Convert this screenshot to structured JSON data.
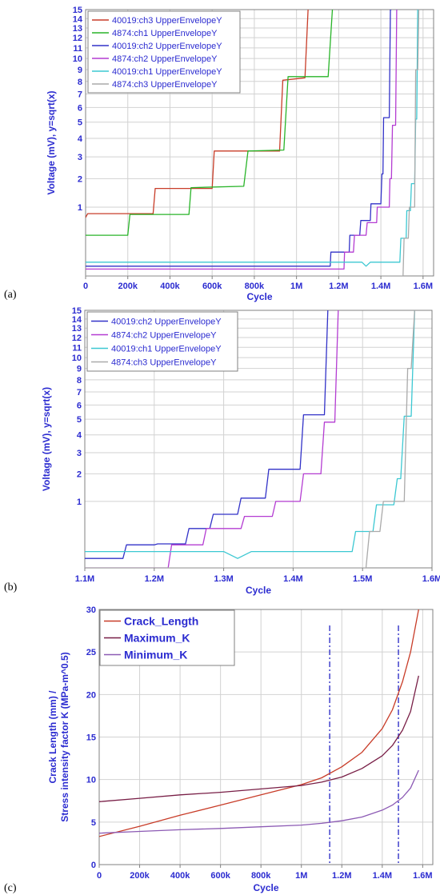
{
  "chart_data": [
    {
      "panel_label": "(a)",
      "type": "line",
      "xlabel": "Cycle",
      "ylabel": "Voltage (mV), y=sqrt(x)",
      "y_scale": "sqrt",
      "xlim": [
        0,
        1650000
      ],
      "ylim": [
        0,
        15
      ],
      "grid": true,
      "legend_position": "top-left",
      "x_ticks": [
        0,
        200000,
        400000,
        600000,
        800000,
        1000000,
        1200000,
        1400000,
        1600000
      ],
      "x_tick_labels": [
        "0",
        "200k",
        "400k",
        "600k",
        "800k",
        "1M",
        "1.2M",
        "1.4M",
        "1.6M"
      ],
      "y_ticks": [
        1,
        2,
        3,
        4,
        5,
        6,
        7,
        8,
        9,
        10,
        11,
        12,
        13,
        14,
        15
      ],
      "y_tick_labels": [
        "1",
        "2",
        "3",
        "4",
        "5",
        "6",
        "7",
        "8",
        "9",
        "10",
        "11",
        "12",
        "13",
        "14",
        "15"
      ],
      "series": [
        {
          "name": "40019:ch3 UpperEnvelopeY",
          "color": "#c83c28",
          "x": [
            0,
            10000,
            320000,
            330000,
            600000,
            610000,
            920000,
            935000,
            1040000,
            1055000
          ],
          "y": [
            0.72,
            0.82,
            0.82,
            1.62,
            1.62,
            3.3,
            3.3,
            8.1,
            8.3,
            15
          ]
        },
        {
          "name": "4874:ch1 UpperEnvelopeY",
          "color": "#28b428",
          "x": [
            0,
            200000,
            210000,
            490000,
            500000,
            750000,
            770000,
            940000,
            960000,
            1150000,
            1170000
          ],
          "y": [
            0.35,
            0.35,
            0.8,
            0.8,
            1.65,
            1.7,
            3.3,
            3.35,
            8.4,
            8.4,
            15
          ]
        },
        {
          "name": "40019:ch2 UpperEnvelopeY",
          "color": "#3232c8",
          "x": [
            0,
            1160000,
            1163000,
            1210000,
            1250000,
            1253000,
            1300000,
            1305000,
            1350000,
            1353000,
            1400000,
            1405000,
            1410000,
            1413000,
            1440000,
            1445000,
            1450000
          ],
          "y": [
            0.02,
            0.02,
            0.12,
            0.12,
            0.12,
            0.35,
            0.35,
            0.65,
            0.65,
            1.1,
            1.1,
            2.2,
            2.2,
            5.3,
            5.3,
            15,
            15
          ]
        },
        {
          "name": "4874:ch2 UpperEnvelopeY",
          "color": "#b43cd2",
          "x": [
            0,
            1225000,
            1228000,
            1270000,
            1275000,
            1330000,
            1335000,
            1380000,
            1383000,
            1440000,
            1443000,
            1450000,
            1455000,
            1470000,
            1475000
          ],
          "y": [
            0.01,
            0.01,
            0.12,
            0.12,
            0.35,
            0.35,
            0.6,
            0.6,
            1.0,
            1.0,
            2.0,
            2.0,
            4.8,
            4.8,
            15
          ]
        },
        {
          "name": "40019:ch1 UpperEnvelopeY",
          "color": "#3cc8d2",
          "x": [
            0,
            1310000,
            1330000,
            1350000,
            1490000,
            1495000,
            1520000,
            1523000,
            1540000,
            1545000,
            1560000,
            1565000,
            1570000,
            1575000
          ],
          "y": [
            0.04,
            0.04,
            0.02,
            0.04,
            0.04,
            0.3,
            0.3,
            0.9,
            0.9,
            1.8,
            1.8,
            5.2,
            5.2,
            15
          ]
        },
        {
          "name": "4874:ch3 UpperEnvelopeY",
          "color": "#aaaaaa",
          "x": [
            0,
            1505000,
            1510000,
            1530000,
            1535000,
            1560000,
            1565000,
            1575000,
            1580000
          ],
          "y": [
            0.0,
            0.0,
            0.3,
            0.3,
            1.0,
            1.0,
            9.0,
            9.0,
            15
          ]
        }
      ]
    },
    {
      "panel_label": "(b)",
      "type": "line",
      "xlabel": "Cycle",
      "ylabel": "Voltage (mV), y=sqrt(x)",
      "y_scale": "sqrt",
      "xlim": [
        1100000,
        1600000
      ],
      "ylim": [
        0,
        15
      ],
      "grid": true,
      "legend_position": "top-left",
      "x_ticks": [
        1100000,
        1200000,
        1300000,
        1400000,
        1500000,
        1600000
      ],
      "x_tick_labels": [
        "1.1M",
        "1.2M",
        "1.3M",
        "1.4M",
        "1.5M",
        "1.6M"
      ],
      "y_ticks": [
        1,
        2,
        3,
        4,
        5,
        6,
        7,
        8,
        9,
        10,
        11,
        12,
        13,
        14,
        15
      ],
      "y_tick_labels": [
        "1",
        "2",
        "3",
        "4",
        "5",
        "6",
        "7",
        "8",
        "9",
        "10",
        "11",
        "12",
        "13",
        "14",
        "15"
      ],
      "series": [
        {
          "name": "40019:ch2 UpperEnvelopeY",
          "color": "#3232c8",
          "x": [
            1100000,
            1155000,
            1160000,
            1200000,
            1205000,
            1245000,
            1250000,
            1280000,
            1285000,
            1320000,
            1325000,
            1360000,
            1365000,
            1400000,
            1405000,
            1410000,
            1415000,
            1445000,
            1450000
          ],
          "y": [
            0.02,
            0.02,
            0.12,
            0.12,
            0.13,
            0.13,
            0.35,
            0.35,
            0.65,
            0.65,
            1.1,
            1.1,
            2.2,
            2.2,
            2.2,
            2.2,
            5.3,
            5.3,
            15
          ]
        },
        {
          "name": "4874:ch2 UpperEnvelopeY",
          "color": "#b43cd2",
          "x": [
            1100000,
            1220000,
            1225000,
            1270000,
            1275000,
            1325000,
            1330000,
            1370000,
            1375000,
            1410000,
            1415000,
            1440000,
            1445000,
            1460000,
            1465000
          ],
          "y": [
            0.0,
            0.0,
            0.12,
            0.12,
            0.35,
            0.35,
            0.6,
            0.6,
            1.0,
            1.0,
            2.0,
            2.0,
            4.8,
            4.8,
            15
          ]
        },
        {
          "name": "40019:ch1 UpperEnvelopeY",
          "color": "#3cc8d2",
          "x": [
            1100000,
            1300000,
            1320000,
            1340000,
            1485000,
            1490000,
            1515000,
            1520000,
            1545000,
            1550000,
            1555000,
            1560000,
            1570000,
            1575000
          ],
          "y": [
            0.06,
            0.06,
            0.02,
            0.06,
            0.06,
            0.3,
            0.3,
            0.9,
            0.9,
            1.8,
            1.8,
            5.2,
            5.2,
            15
          ]
        },
        {
          "name": "4874:ch3 UpperEnvelopeY",
          "color": "#aaaaaa",
          "x": [
            1100000,
            1505000,
            1510000,
            1525000,
            1530000,
            1560000,
            1565000,
            1570000,
            1575000
          ],
          "y": [
            0.0,
            0.0,
            0.3,
            0.3,
            1.0,
            1.0,
            9.0,
            9.0,
            15
          ]
        }
      ]
    },
    {
      "panel_label": "(c)",
      "type": "line",
      "xlabel": "Cycle",
      "ylabel": "Crack Length (mm) / Stress intensity factor K (MPa-m^0.5)",
      "ylabel_lines": [
        "Crack Length (mm) /",
        "Stress intensity factor K (MPa-m^0.5)"
      ],
      "xlim": [
        0,
        1650000
      ],
      "ylim": [
        0,
        30
      ],
      "grid": true,
      "legend_position": "top-left",
      "x_ticks": [
        0,
        200000,
        400000,
        600000,
        800000,
        1000000,
        1200000,
        1400000,
        1600000
      ],
      "x_tick_labels": [
        "0",
        "200k",
        "400k",
        "600k",
        "800k",
        "1M",
        "1.2M",
        "1.4M",
        "1.6M"
      ],
      "y_ticks": [
        0,
        5,
        10,
        15,
        20,
        25,
        30
      ],
      "y_tick_labels": [
        "0",
        "5",
        "10",
        "15",
        "20",
        "25",
        "30"
      ],
      "vertical_markers": [
        1140000,
        1480000
      ],
      "series": [
        {
          "name": "Crack_Length",
          "color": "#c83c28",
          "x": [
            0,
            200000,
            400000,
            600000,
            800000,
            1000000,
            1100000,
            1200000,
            1300000,
            1400000,
            1450000,
            1500000,
            1540000,
            1580000
          ],
          "y": [
            3.3,
            4.5,
            5.8,
            7.0,
            8.2,
            9.4,
            10.2,
            11.5,
            13.2,
            16.0,
            18.2,
            21.5,
            25.0,
            30.0
          ]
        },
        {
          "name": "Maximum_K",
          "color": "#781e46",
          "x": [
            0,
            200000,
            400000,
            600000,
            800000,
            1000000,
            1100000,
            1200000,
            1300000,
            1400000,
            1450000,
            1500000,
            1540000,
            1580000
          ],
          "y": [
            7.4,
            7.8,
            8.2,
            8.5,
            8.9,
            9.3,
            9.7,
            10.3,
            11.3,
            12.8,
            14.0,
            15.8,
            18.0,
            22.2
          ]
        },
        {
          "name": "Minimum_K",
          "color": "#8c5ab4",
          "x": [
            0,
            200000,
            400000,
            600000,
            800000,
            1000000,
            1100000,
            1200000,
            1300000,
            1400000,
            1450000,
            1500000,
            1540000,
            1580000
          ],
          "y": [
            3.7,
            3.9,
            4.1,
            4.25,
            4.45,
            4.65,
            4.85,
            5.15,
            5.6,
            6.4,
            7.0,
            7.9,
            9.0,
            11.1
          ]
        }
      ]
    }
  ],
  "style": {
    "axis_text_color": "#2b2bd0",
    "grid_color": "#d2d2d2",
    "frame_color": "#808080",
    "marker_color": "#3232c8"
  }
}
